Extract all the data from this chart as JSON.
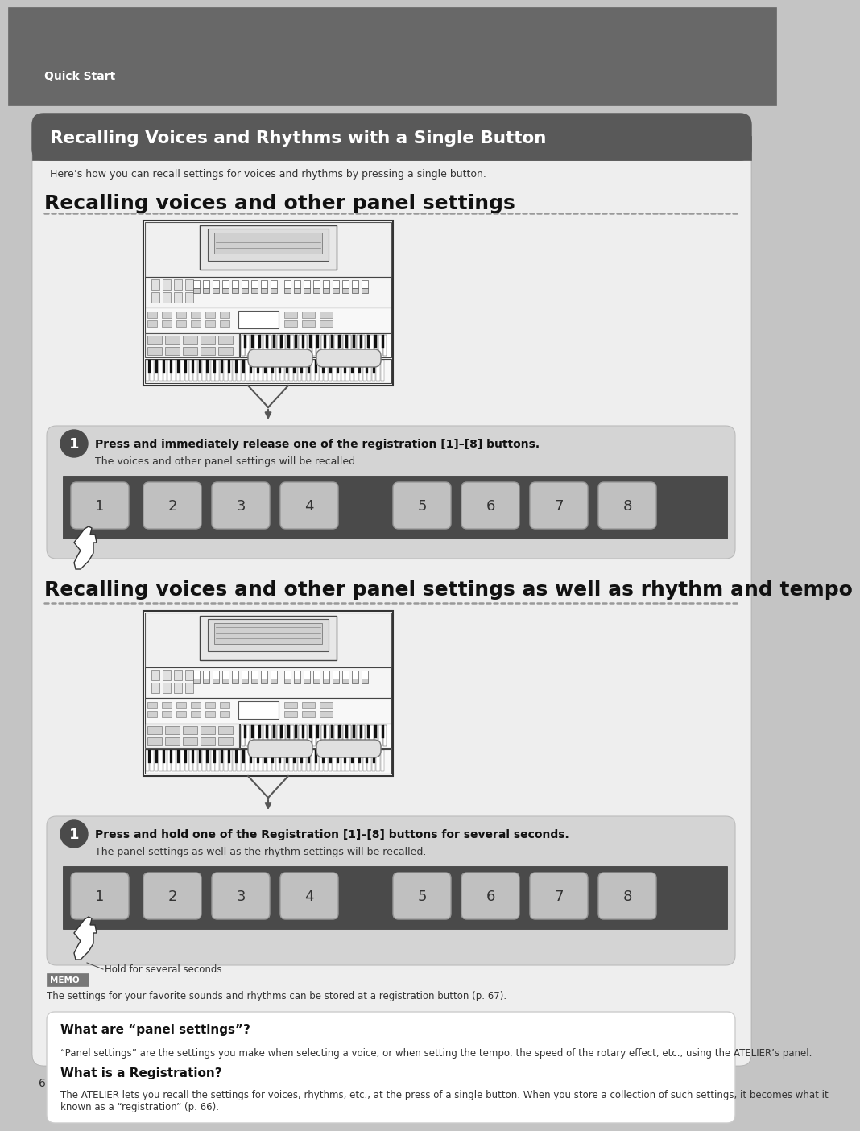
{
  "page_bg": "#c4c4c4",
  "header_bg": "#686868",
  "header_text": "Quick Start",
  "header_text_color": "#ffffff",
  "main_card_bg": "#eeeeee",
  "title_banner_bg": "#595959",
  "title_banner_text": "Recalling Voices and Rhythms with a Single Button",
  "title_banner_text_color": "#ffffff",
  "intro_text": "Here’s how you can recall settings for voices and rhythms by pressing a single button.",
  "section1_title": "Recalling voices and other panel settings",
  "section2_title": "Recalling voices and other panel settings as well as rhythm and tempo",
  "step1_section1_bold": "Press and immediately release one of the registration [1]–[8] buttons.",
  "step1_section1_normal": "The voices and other panel settings will be recalled.",
  "step1_section2_bold": "Press and hold one of the Registration [1]–[8] buttons for several seconds.",
  "step1_section2_normal": "The panel settings as well as the rhythm settings will be recalled.",
  "hold_label": "Hold for several seconds",
  "memo_label": "MEMO",
  "memo_text": "The settings for your favorite sounds and rhythms can be stored at a registration button (p. 67).",
  "box_title1": "What are “panel settings”?",
  "box_text1": "“Panel settings” are the settings you make when selecting a voice, or when setting the tempo, the speed of the rotary effect, etc., using the ATELIER’s panel.",
  "box_title2": "What is a Registration?",
  "box_text2": "The ATELIER lets you recall the settings for voices, rhythms, etc., at the press of a single button. When you store a collection of such settings, it becomes what it known as a “registration” (p. 66).",
  "page_number": "6",
  "step_circle_bg": "#4a4a4a",
  "step_circle_text": "#ffffff",
  "step_box_bg": "#d4d4d4",
  "button_bg": "#c0c0c0",
  "button_bar_bg": "#4a4a4a",
  "button_labels": [
    "1",
    "2",
    "3",
    "4",
    "5",
    "6",
    "7",
    "8"
  ],
  "dotted_line_color": "#aaaaaa",
  "white_box_bg": "#ffffff"
}
